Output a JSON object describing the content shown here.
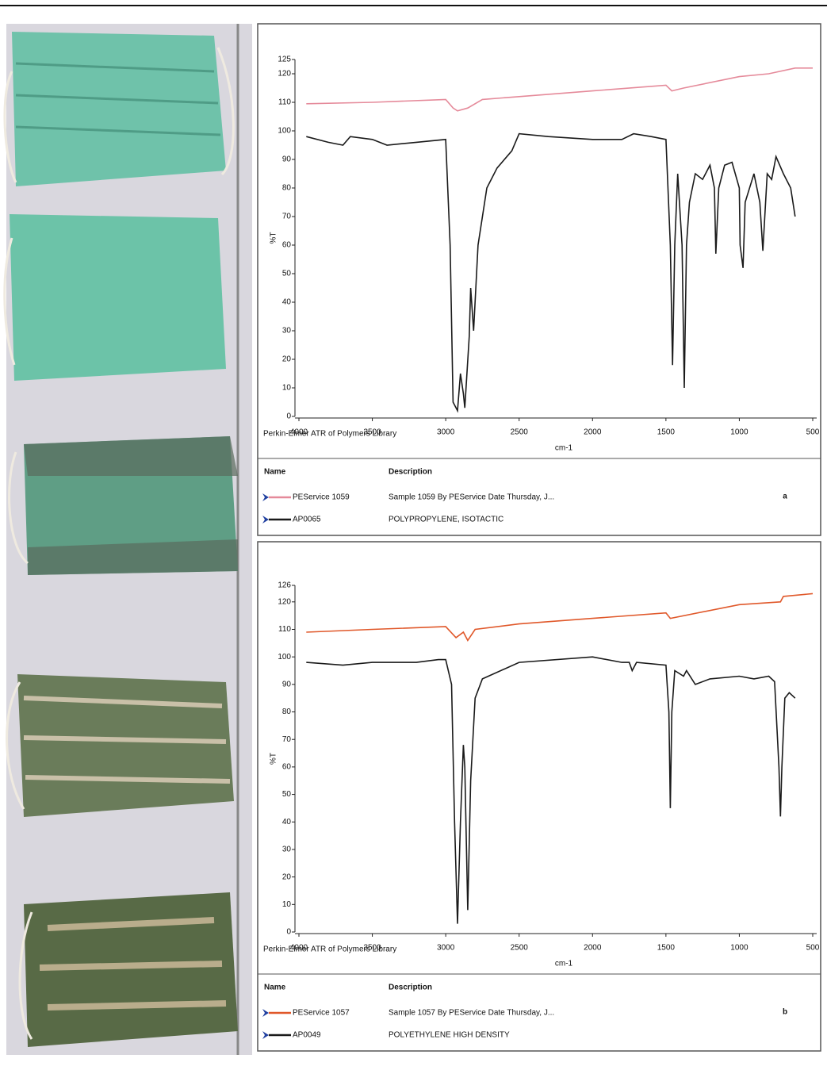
{
  "chart_data": [
    {
      "type": "line",
      "label": "a",
      "annotation": "Perkin-Elmer ATR of Polymers Library",
      "xlabel": "cm-1",
      "ylabel": "%T",
      "xlim": [
        4000,
        500
      ],
      "ylim": [
        0,
        125
      ],
      "xticks": [
        4000,
        3500,
        3000,
        2500,
        2000,
        1500,
        1000,
        500
      ],
      "yticks": [
        0,
        10,
        20,
        30,
        40,
        50,
        60,
        70,
        80,
        90,
        100,
        110,
        120,
        125
      ],
      "legend_headers": [
        "Name",
        "Description"
      ],
      "series": [
        {
          "name": "PEService 1059",
          "description": "Sample 1059 By PEService Date Thursday, J...",
          "color": "#e58a9a",
          "x": [
            3950,
            3500,
            3000,
            2950,
            2920,
            2850,
            2750,
            2500,
            2000,
            1500,
            1460,
            1380,
            1000,
            800,
            620,
            500
          ],
          "values": [
            109.5,
            110,
            111,
            108,
            107,
            108,
            111,
            112,
            114,
            116,
            114,
            115,
            119,
            120,
            122,
            122
          ]
        },
        {
          "name": "AP0065",
          "description": "POLYPROPYLENE, ISOTACTIC",
          "color": "#1a1a1a",
          "x": [
            3950,
            3800,
            3700,
            3650,
            3500,
            3400,
            3200,
            3000,
            2970,
            2950,
            2920,
            2900,
            2880,
            2870,
            2840,
            2830,
            2810,
            2780,
            2720,
            2650,
            2550,
            2500,
            2300,
            2000,
            1800,
            1720,
            1600,
            1500,
            1470,
            1455,
            1440,
            1420,
            1390,
            1375,
            1360,
            1340,
            1300,
            1250,
            1200,
            1170,
            1160,
            1140,
            1100,
            1050,
            1000,
            995,
            975,
            960,
            900,
            860,
            840,
            810,
            780,
            750,
            700,
            650,
            620
          ],
          "values": [
            98,
            96,
            95,
            98,
            97,
            95,
            96,
            97,
            60,
            5,
            2,
            15,
            8,
            3,
            28,
            45,
            30,
            60,
            80,
            87,
            93,
            99,
            98,
            97,
            97,
            99,
            98,
            97,
            60,
            18,
            60,
            85,
            60,
            10,
            60,
            75,
            85,
            83,
            88,
            80,
            57,
            80,
            88,
            89,
            80,
            60,
            52,
            75,
            85,
            75,
            58,
            85,
            83,
            91,
            85,
            80,
            70
          ]
        }
      ]
    },
    {
      "type": "line",
      "label": "b",
      "annotation": "Perkin-Elmer ATR of Polymers Library",
      "xlabel": "cm-1",
      "ylabel": "%T",
      "xlim": [
        4000,
        500
      ],
      "ylim": [
        0,
        126
      ],
      "xticks": [
        4000,
        3500,
        3000,
        2500,
        2000,
        1500,
        1000,
        500
      ],
      "yticks": [
        0,
        10,
        20,
        30,
        40,
        50,
        60,
        70,
        80,
        90,
        100,
        110,
        120,
        126
      ],
      "legend_headers": [
        "Name",
        "Description"
      ],
      "series": [
        {
          "name": "PEService 1057",
          "description": "Sample 1057 By PEService Date Thursday, J...",
          "color": "#e0582a",
          "x": [
            3950,
            3500,
            3000,
            2930,
            2880,
            2850,
            2800,
            2500,
            2000,
            1500,
            1470,
            1000,
            720,
            700,
            500
          ],
          "values": [
            109,
            110,
            111,
            107,
            109,
            106,
            110,
            112,
            114,
            116,
            114,
            119,
            120,
            122,
            123
          ]
        },
        {
          "name": "AP0049",
          "description": "POLYETHYLENE HIGH DENSITY",
          "color": "#1a1a1a",
          "x": [
            3950,
            3700,
            3500,
            3200,
            3050,
            3000,
            2960,
            2940,
            2920,
            2900,
            2880,
            2870,
            2850,
            2830,
            2800,
            2750,
            2500,
            2000,
            1800,
            1750,
            1730,
            1700,
            1500,
            1480,
            1470,
            1460,
            1440,
            1380,
            1360,
            1300,
            1200,
            1000,
            900,
            800,
            760,
            730,
            720,
            710,
            690,
            660,
            620
          ],
          "values": [
            98,
            97,
            98,
            98,
            99,
            99,
            90,
            40,
            3,
            40,
            68,
            60,
            8,
            55,
            85,
            92,
            98,
            100,
            98,
            98,
            95,
            98,
            97,
            80,
            45,
            80,
            95,
            93,
            95,
            90,
            92,
            93,
            92,
            93,
            91,
            60,
            42,
            60,
            85,
            87,
            85
          ]
        }
      ]
    }
  ]
}
